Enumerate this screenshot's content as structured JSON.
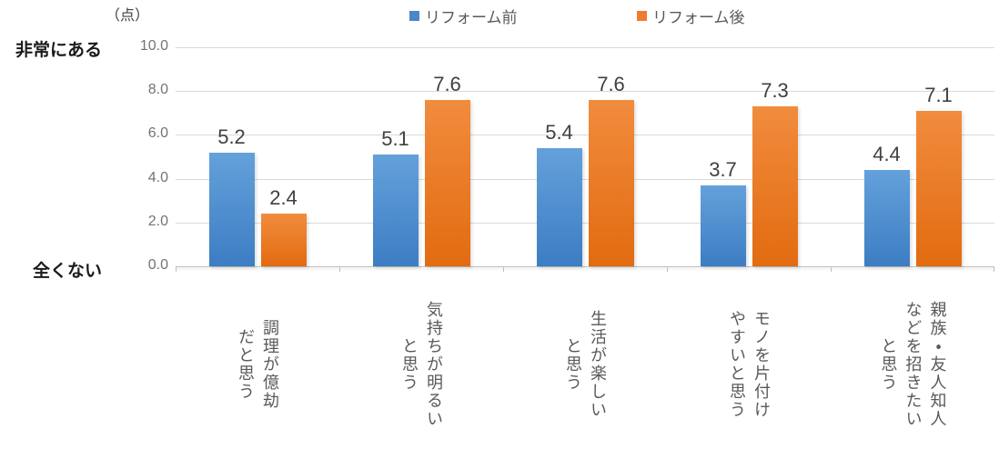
{
  "chart_data": {
    "type": "bar",
    "title": "",
    "unit_label": "（点）",
    "y_axis_top_label": "非常にある",
    "y_axis_bottom_label": "全くない",
    "categories": [
      "調理が億劫\nだと思う",
      "気持ちが明るい\nと思う",
      "生活が楽しい\nと思う",
      "モノを片付け\nやすいと思う",
      "親族・友人知人\nなどを招きたい\nと思う"
    ],
    "series": [
      {
        "name": "リフォーム前",
        "values": [
          5.2,
          5.1,
          5.4,
          3.7,
          4.4
        ],
        "color_top": "#64A1DB",
        "color_bottom": "#3C7DC3",
        "legend_color": "#4A86C8"
      },
      {
        "name": "リフォーム後",
        "values": [
          2.4,
          7.6,
          7.6,
          7.3,
          7.1
        ],
        "color_top": "#F18C3E",
        "color_bottom": "#E26B10",
        "legend_color": "#ED7D31"
      }
    ],
    "ylim": [
      0,
      10
    ],
    "y_tick_labels": [
      "10.0",
      "8.0",
      "6.0",
      "4.0",
      "2.0",
      "0.0"
    ],
    "grid": true,
    "legend_position": "top"
  },
  "colors": {
    "grid": "#D9D9D9",
    "axis": "#BFBFBF",
    "y_tick_label": "#737373",
    "data_label": "#404040",
    "category_label": "#595959",
    "side_label": "#1A1A1A"
  }
}
